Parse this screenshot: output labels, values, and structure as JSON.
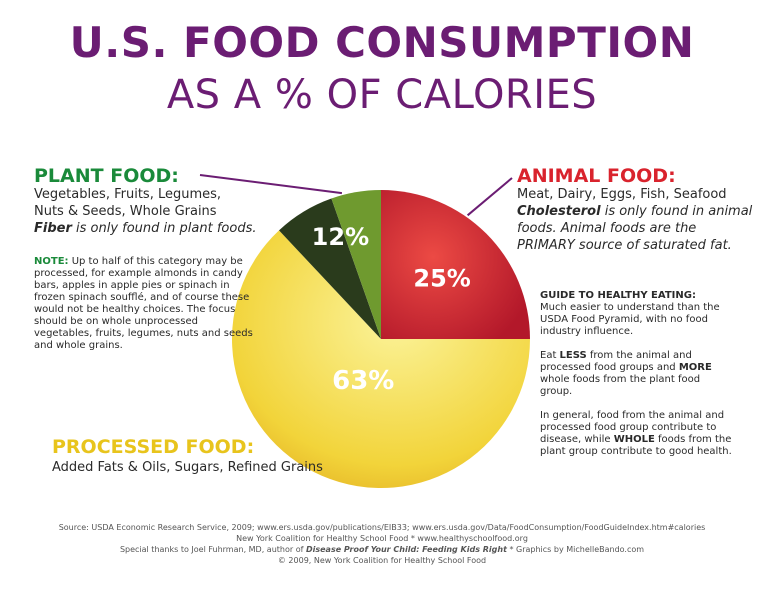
{
  "title": "U.S. FOOD CONSUMPTION",
  "subtitle": "AS A % OF CALORIES",
  "plant": {
    "heading": "PLANT FOOD:",
    "line1": "Vegetables, Fruits, Legumes,",
    "line2": "Nuts & Seeds, Whole Grains",
    "fiber_bold": "Fiber",
    "fiber_rest": " is only found in plant foods.",
    "note_label": "NOTE:",
    "note_text": " Up to half of this category may be processed, for example almonds in candy bars, apples in apple pies or spinach in frozen spinach soufflé, and of course these would not be healthy choices. The focus should be on whole unprocessed vegetables, fruits, legumes, nuts and seeds and whole grains."
  },
  "animal": {
    "heading": "ANIMAL FOOD:",
    "line1": "Meat, Dairy, Eggs, Fish, Seafood",
    "chol_bold": "Cholesterol",
    "chol_rest": " is only found in animal foods. Animal foods are the PRIMARY source of saturated fat."
  },
  "processed": {
    "heading": "PROCESSED FOOD:",
    "line1": "Added Fats & Oils, Sugars, Refined Grains"
  },
  "guide": {
    "title": "GUIDE TO HEALTHY EATING:",
    "p1": "Much easier to understand than the USDA Food Pyramid, with no food industry influence.",
    "p2a": "Eat ",
    "p2b": "LESS",
    "p2c": " from the animal and processed food groups and ",
    "p2d": "MORE",
    "p2e": " whole foods from the plant food group.",
    "p3a": "In general, food from the animal and processed food group contribute to disease, while ",
    "p3b": "WHOLE",
    "p3c": " foods from the plant group contribute to good health."
  },
  "source": {
    "line1": "Source: USDA Economic Research Service, 2009; www.ers.usda.gov/publications/EIB33; www.ers.usda.gov/Data/FoodConsumption/FoodGuideIndex.htm#calories",
    "line2": "New York Coalition for Healthy School Food * www.healthyschoolfood.org",
    "line3a": "Special thanks to Joel Fuhrman, MD, author of ",
    "line3b": "Disease Proof Your Child: Feeding Kids Right",
    "line3c": " * Graphics by MichelleBando.com",
    "line4": "© 2009, New York Coalition for Healthy School Food"
  },
  "chart_data": {
    "type": "pie",
    "title": "U.S. FOOD CONSUMPTION AS A % OF CALORIES",
    "categories": [
      "Animal Food",
      "Processed Food",
      "Plant Food"
    ],
    "values": [
      25,
      63,
      12
    ],
    "labels": [
      "25%",
      "63%",
      "12%"
    ],
    "colors": {
      "animal": "#cf2a2f",
      "processed": "#f0d23a",
      "plant_light": "#6f9a2f",
      "plant_dark": "#2a3b1c",
      "leader": "#6b1d73"
    },
    "start": "12 o'clock, clockwise"
  }
}
